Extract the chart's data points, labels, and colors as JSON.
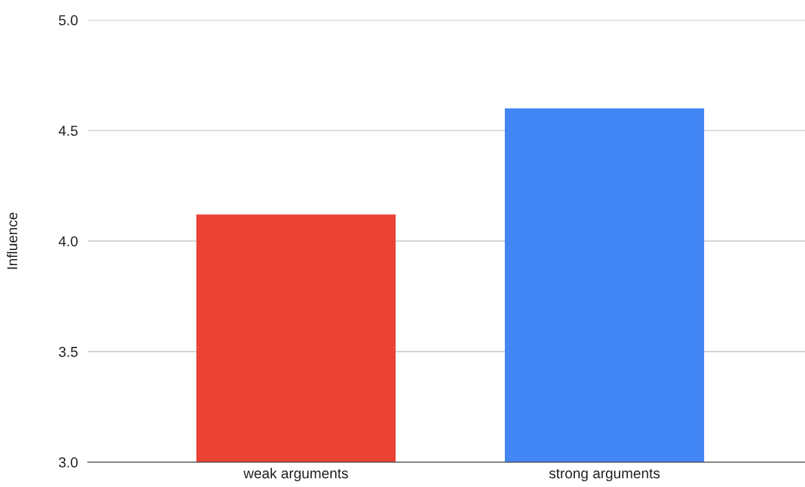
{
  "chart_data": {
    "type": "bar",
    "ylabel": "Influence",
    "categories": [
      "weak arguments",
      "strong arguments"
    ],
    "values": [
      4.12,
      4.6
    ],
    "colors": [
      "#ea4335",
      "#4285f4"
    ],
    "ylim": [
      3.0,
      5.0
    ],
    "yticks": [
      {
        "value": 3.0,
        "label": "3.0"
      },
      {
        "value": 3.5,
        "label": "3.5"
      },
      {
        "value": 4.0,
        "label": "4.0"
      },
      {
        "value": 4.5,
        "label": "4.5"
      },
      {
        "value": 5.0,
        "label": "5.0"
      }
    ],
    "grid": "y",
    "legend": false
  }
}
